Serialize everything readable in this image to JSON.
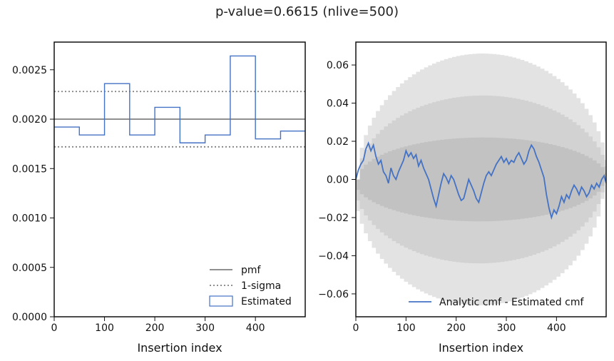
{
  "figure": {
    "title": "p-value=0.6615 (nlive=500)"
  },
  "chart_data": [
    {
      "type": "line",
      "panel": "left",
      "title": "",
      "xlabel": "Insertion index",
      "ylabel": "",
      "xlim": [
        0,
        499
      ],
      "ylim": [
        0,
        0.00278
      ],
      "xticks": [
        "0",
        "100",
        "200",
        "300",
        "400"
      ],
      "yticks": [
        "0.0000",
        "0.0005",
        "0.0010",
        "0.0015",
        "0.0020",
        "0.0025"
      ],
      "legend_position": "lower-right",
      "legend": [
        {
          "label": "pmf",
          "style": "solid",
          "color": "#808080"
        },
        {
          "label": "1-sigma",
          "style": "dotted",
          "color": "#808080"
        },
        {
          "label": "Estimated",
          "style": "step",
          "color": "#4472c4"
        }
      ],
      "pmf_value": 0.002,
      "sigma_band": [
        0.00172,
        0.00228
      ],
      "estimated_step": {
        "bin_edges": [
          0,
          50,
          100,
          150,
          200,
          250,
          300,
          350,
          400,
          450,
          499
        ],
        "values": [
          0.00192,
          0.00184,
          0.00236,
          0.00184,
          0.00212,
          0.00176,
          0.00184,
          0.00264,
          0.0018,
          0.00188
        ]
      }
    },
    {
      "type": "line",
      "panel": "right",
      "title": "",
      "xlabel": "Insertion index",
      "ylabel": "",
      "xlim": [
        0,
        499
      ],
      "ylim": [
        -0.072,
        0.072
      ],
      "xticks": [
        "0",
        "100",
        "200",
        "300",
        "400"
      ],
      "yticks": [
        "−0.06",
        "−0.04",
        "−0.02",
        "0.00",
        "0.02",
        "0.04",
        "0.06"
      ],
      "legend_position": "lower-right",
      "legend": [
        {
          "label": "Analytic cmf - Estimated cmf",
          "style": "solid",
          "color": "#4472c4"
        }
      ],
      "bands": [
        {
          "name": "3-sigma",
          "halfwidth_at_center": 0.066,
          "color": "#e3e3e3"
        },
        {
          "name": "2-sigma",
          "halfwidth_at_center": 0.044,
          "color": "#d2d2d2"
        },
        {
          "name": "1-sigma",
          "halfwidth_at_center": 0.022,
          "color": "#c2c2c2"
        }
      ],
      "series": [
        {
          "x": [
            0,
            5,
            10,
            15,
            20,
            25,
            30,
            35,
            40,
            45,
            50,
            55,
            60,
            65,
            70,
            75,
            80,
            85,
            90,
            95,
            100,
            105,
            110,
            115,
            120,
            125,
            130,
            135,
            140,
            145,
            150,
            155,
            160,
            165,
            170,
            175,
            180,
            185,
            190,
            195,
            200,
            205,
            210,
            215,
            220,
            225,
            230,
            235,
            240,
            245,
            250,
            255,
            260,
            265,
            270,
            275,
            280,
            285,
            290,
            295,
            300,
            305,
            310,
            315,
            320,
            325,
            330,
            335,
            340,
            345,
            350,
            355,
            360,
            365,
            370,
            375,
            380,
            385,
            390,
            395,
            400,
            405,
            410,
            415,
            420,
            425,
            430,
            435,
            440,
            445,
            450,
            455,
            460,
            465,
            470,
            475,
            480,
            485,
            490,
            495,
            499
          ],
          "y": [
            0.0,
            0.005,
            0.008,
            0.01,
            0.016,
            0.019,
            0.015,
            0.018,
            0.012,
            0.008,
            0.01,
            0.004,
            0.002,
            -0.002,
            0.006,
            0.002,
            0.0,
            0.004,
            0.007,
            0.01,
            0.015,
            0.012,
            0.014,
            0.011,
            0.013,
            0.007,
            0.01,
            0.006,
            0.003,
            0.0,
            -0.005,
            -0.01,
            -0.014,
            -0.008,
            -0.002,
            0.003,
            0.001,
            -0.002,
            0.002,
            0.0,
            -0.004,
            -0.008,
            -0.011,
            -0.01,
            -0.005,
            0.0,
            -0.003,
            -0.006,
            -0.01,
            -0.012,
            -0.007,
            -0.002,
            0.002,
            0.004,
            0.002,
            0.005,
            0.008,
            0.01,
            0.012,
            0.009,
            0.011,
            0.008,
            0.01,
            0.009,
            0.012,
            0.014,
            0.011,
            0.008,
            0.01,
            0.015,
            0.018,
            0.016,
            0.012,
            0.009,
            0.005,
            0.001,
            -0.008,
            -0.015,
            -0.02,
            -0.016,
            -0.018,
            -0.014,
            -0.009,
            -0.012,
            -0.008,
            -0.01,
            -0.006,
            -0.003,
            -0.005,
            -0.008,
            -0.004,
            -0.006,
            -0.009,
            -0.007,
            -0.003,
            -0.005,
            -0.002,
            -0.004,
            0.0,
            0.002,
            -0.002
          ]
        }
      ]
    }
  ]
}
